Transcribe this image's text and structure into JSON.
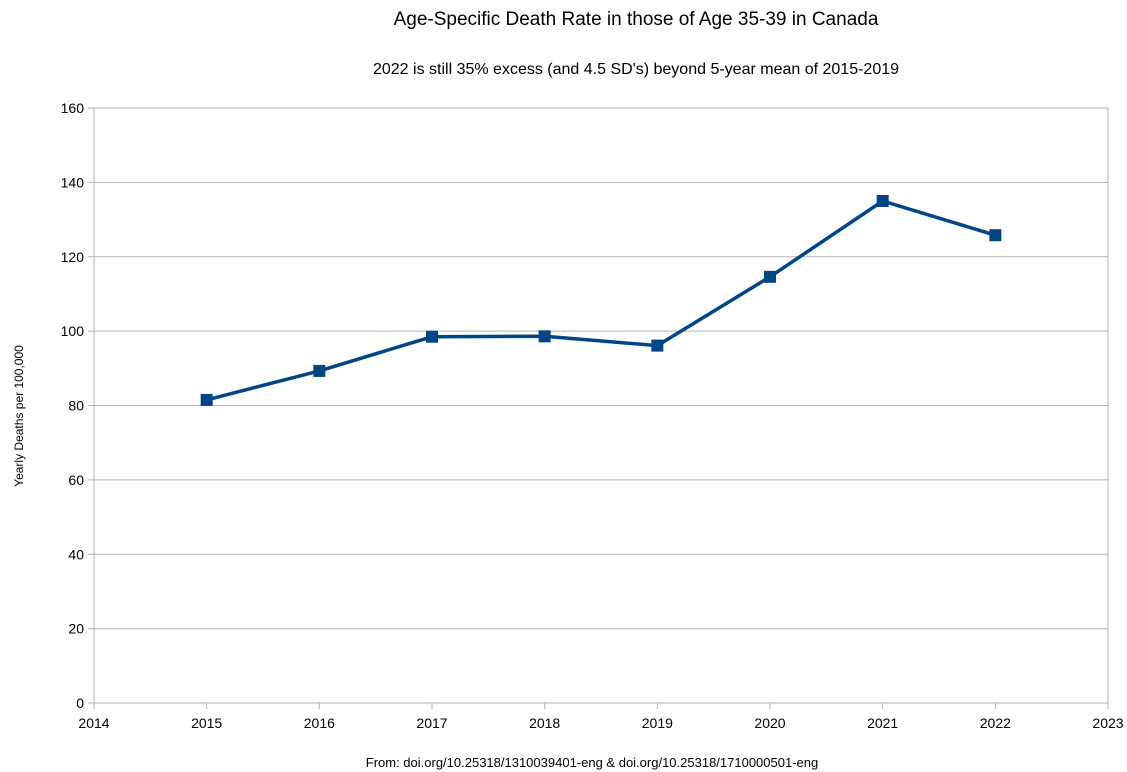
{
  "chart_data": {
    "type": "line",
    "title": "Age-Specific Death Rate in those of Age 35-39 in Canada",
    "subtitle": "2022 is still 35% excess (and 4.5 SD's) beyond 5-year mean of 2015-2019",
    "xlabel": "",
    "ylabel": "Yearly Deaths per 100,000",
    "source": "From: doi.org/10.25318/1310039401-eng & doi.org/10.25318/1710000501-eng",
    "xlim": [
      2014,
      2023
    ],
    "ylim": [
      0,
      160
    ],
    "x_ticks": [
      2014,
      2015,
      2016,
      2017,
      2018,
      2019,
      2020,
      2021,
      2022,
      2023
    ],
    "y_ticks": [
      0,
      20,
      40,
      60,
      80,
      100,
      120,
      140,
      160
    ],
    "grid": true,
    "legend": "none",
    "series": [
      {
        "color": "#004586",
        "marker": "square",
        "x": [
          2015,
          2016,
          2017,
          2018,
          2019,
          2020,
          2021,
          2022
        ],
        "values": [
          81.5,
          89.3,
          98.5,
          98.6,
          96.1,
          114.6,
          135.0,
          125.8
        ]
      }
    ]
  }
}
